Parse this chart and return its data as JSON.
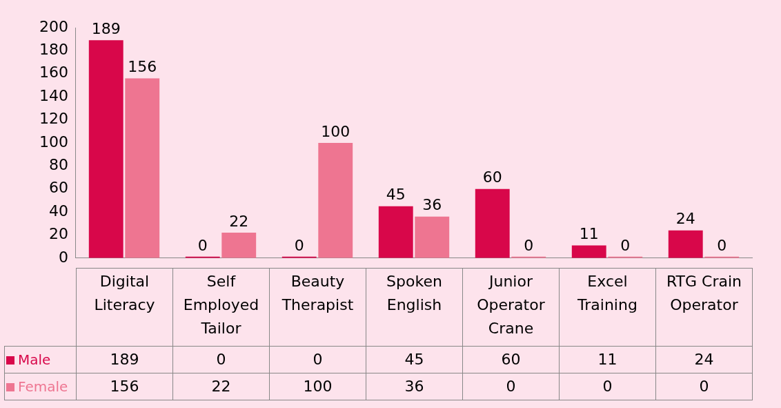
{
  "chart_data": {
    "type": "bar",
    "categories": [
      "Digital Literacy",
      "Self Employed Tailor",
      "Beauty Therapist",
      "Spoken English",
      "Junior Operator Crane",
      "Excel Training",
      "RTG Crain Operator"
    ],
    "series": [
      {
        "name": "Male",
        "color": "#d8074a",
        "values": [
          189,
          0,
          0,
          45,
          60,
          11,
          24
        ],
        "value_labels": [
          "189",
          "0",
          "0",
          "45",
          "60",
          "11",
          "24"
        ]
      },
      {
        "name": "Female",
        "color": "#ee7591",
        "values": [
          156,
          22,
          100,
          36,
          0,
          0,
          0
        ],
        "value_labels": [
          "156",
          "22",
          "100",
          "36",
          "0",
          "0",
          "0"
        ]
      }
    ],
    "ylim": [
      0,
      200
    ],
    "yticks": [
      0,
      20,
      40,
      60,
      80,
      100,
      120,
      140,
      160,
      180,
      200
    ],
    "grid": false,
    "legend": "bottom",
    "annotations": [
      "189",
      "0",
      "0",
      "45",
      "60",
      "11",
      "24",
      "156",
      "22",
      "100",
      "36",
      "0",
      "0",
      "0"
    ]
  }
}
